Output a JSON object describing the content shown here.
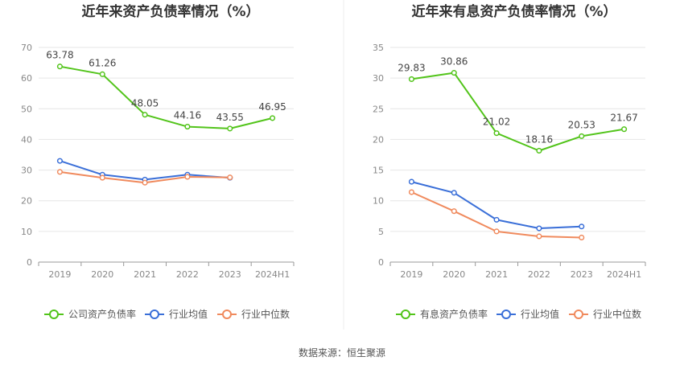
{
  "chart_data": [
    {
      "type": "line",
      "title": "近年来资产负债率情况（%）",
      "categories": [
        "2019",
        "2020",
        "2021",
        "2022",
        "2023",
        "2024H1"
      ],
      "ylim": [
        0,
        70
      ],
      "yticks": [
        "0",
        "10",
        "20",
        "30",
        "40",
        "50",
        "60",
        "70"
      ],
      "grid": true,
      "legend_position": "bottom",
      "series": [
        {
          "name": "公司资产负债率",
          "color": "#52c41a",
          "values": [
            63.78,
            61.26,
            48.05,
            44.16,
            43.55,
            46.95
          ],
          "labels": [
            "63.78",
            "61.26",
            "48.05",
            "44.16",
            "43.55",
            "46.95"
          ]
        },
        {
          "name": "行业均值",
          "color": "#3a6fd8",
          "values": [
            33.0,
            28.5,
            26.9,
            28.5,
            27.5,
            null
          ]
        },
        {
          "name": "行业中位数",
          "color": "#f08a5d",
          "values": [
            29.4,
            27.5,
            25.9,
            27.8,
            27.6,
            null
          ]
        }
      ]
    },
    {
      "type": "line",
      "title": "近年来有息资产负债率情况（%）",
      "categories": [
        "2019",
        "2020",
        "2021",
        "2022",
        "2023",
        "2024H1"
      ],
      "ylim": [
        0,
        35
      ],
      "yticks": [
        "0",
        "5",
        "10",
        "15",
        "20",
        "25",
        "30",
        "35"
      ],
      "grid": true,
      "legend_position": "bottom",
      "series": [
        {
          "name": "有息资产负债率",
          "color": "#52c41a",
          "values": [
            29.83,
            30.86,
            21.02,
            18.16,
            20.53,
            21.67
          ],
          "labels": [
            "29.83",
            "30.86",
            "21.02",
            "18.16",
            "20.53",
            "21.67"
          ]
        },
        {
          "name": "行业均值",
          "color": "#3a6fd8",
          "values": [
            13.1,
            11.3,
            6.9,
            5.5,
            5.8,
            null
          ]
        },
        {
          "name": "行业中位数",
          "color": "#f08a5d",
          "values": [
            11.4,
            8.3,
            5.0,
            4.2,
            4.0,
            null
          ]
        }
      ]
    }
  ],
  "source_text": "数据来源：恒生聚源"
}
